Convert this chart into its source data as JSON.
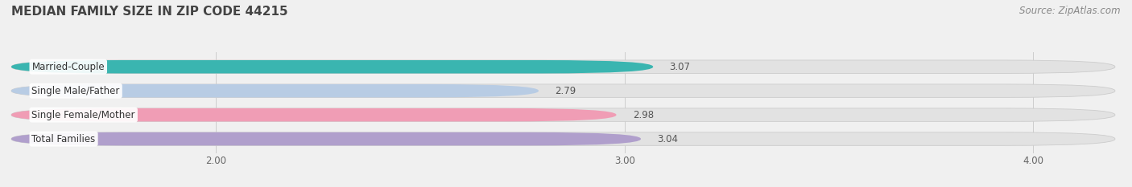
{
  "title": "MEDIAN FAMILY SIZE IN ZIP CODE 44215",
  "source": "Source: ZipAtlas.com",
  "categories": [
    "Married-Couple",
    "Single Male/Father",
    "Single Female/Mother",
    "Total Families"
  ],
  "values": [
    3.07,
    2.79,
    2.98,
    3.04
  ],
  "bar_colors": [
    "#3ab5b0",
    "#b8cce4",
    "#f09db5",
    "#b09fcc"
  ],
  "xlim": [
    1.5,
    4.2
  ],
  "xticks": [
    2.0,
    3.0,
    4.0
  ],
  "xtick_labels": [
    "2.00",
    "3.00",
    "4.00"
  ],
  "title_fontsize": 11,
  "label_fontsize": 8.5,
  "value_fontsize": 8.5,
  "source_fontsize": 8.5,
  "background_color": "#f0f0f0",
  "bar_bg_color": "#e2e2e2"
}
